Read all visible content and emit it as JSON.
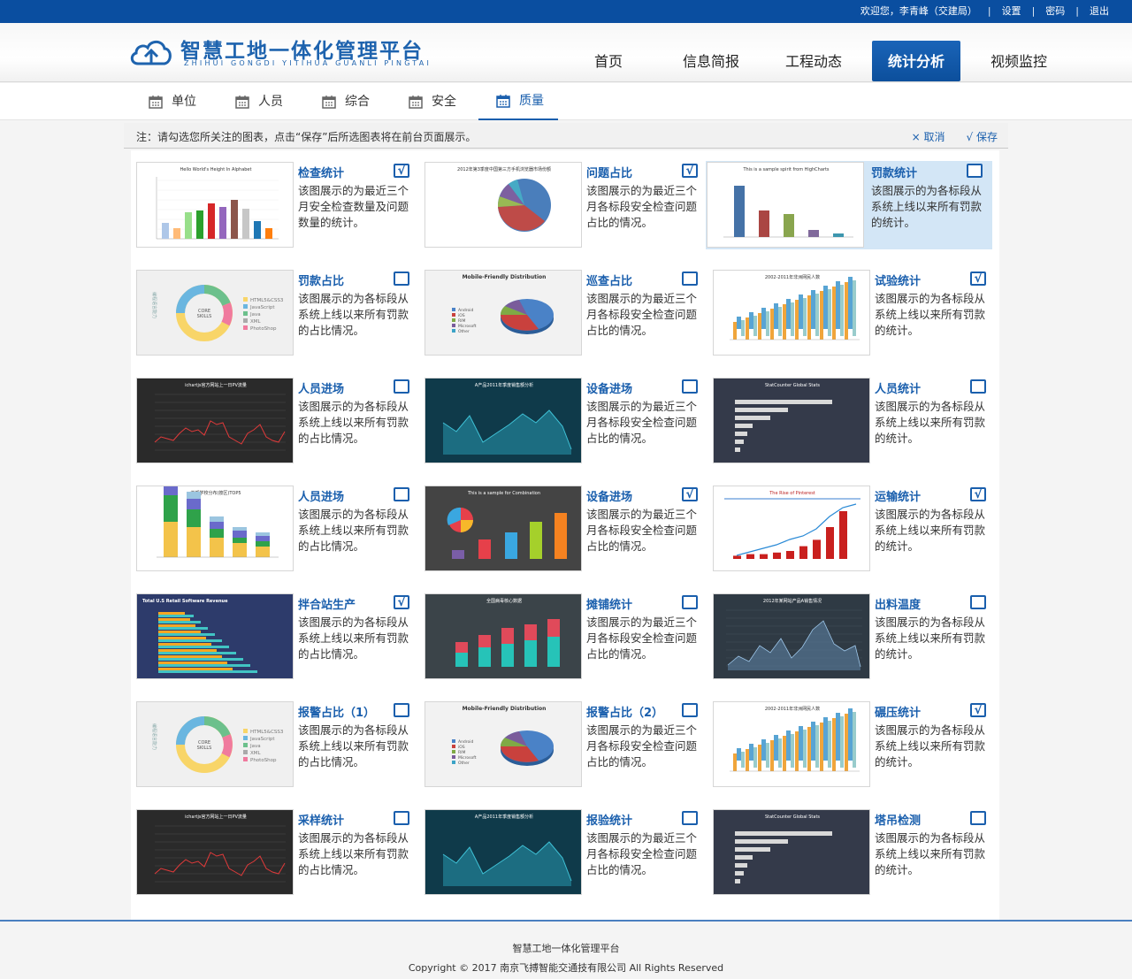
{
  "topbar": {
    "welcome": "欢迎您，李青峰（交建局）",
    "settings": "设置",
    "password": "密码",
    "logout": "退出"
  },
  "logo": {
    "title": "智慧工地一体化管理平台",
    "subtitle": "ZHIHUI GONGDI YITIHUA GUANLI PINGTAI"
  },
  "nav": [
    "首页",
    "信息简报",
    "工程动态",
    "统计分析",
    "视频监控"
  ],
  "nav_active": "统计分析",
  "subnav": [
    "单位",
    "人员",
    "综合",
    "安全",
    "质量"
  ],
  "subnav_active": "质量",
  "notebar": {
    "note": "注：请勾选您所关注的图表，点击“保存”后所选图表将在前台页面展示。",
    "cancel": "× 取消",
    "save": "√ 保存"
  },
  "cards": [
    {
      "title": "检查统计",
      "desc": "该图展示的为最近三个月安全检查数量及问题数量的统计。",
      "checked": true,
      "thumb": "bar-light",
      "thumb_title": "Hello World's Height In Alphabet"
    },
    {
      "title": "问题占比",
      "desc": "该图展示的为最近三个月各标段安全检查问题占比的情况。",
      "checked": true,
      "thumb": "pie-light",
      "thumb_title": "2012年第3季度中国第三方手机浏览器市场份额"
    },
    {
      "title": "罚款统计",
      "desc": "该图展示的为各标段从系统上线以来所有罚款的统计。",
      "checked": false,
      "selected": true,
      "thumb": "bar-simple",
      "thumb_title": "This is a sample spirit from HighCharts"
    },
    {
      "title": "罚款占比",
      "desc": "该图展示的为各标段从系统上线以来所有罚款的占比情况。",
      "checked": false,
      "thumb": "donut",
      "thumb_title": "CORE SKILLS"
    },
    {
      "title": "巡查占比",
      "desc": "该图展示的为最近三个月各标段安全检查问题占比的情况。",
      "checked": false,
      "thumb": "pie3d",
      "thumb_title": "Mobile-Friendly Distribution"
    },
    {
      "title": "试验统计",
      "desc": "该图展示的为各标段从系统上线以来所有罚款的统计。",
      "checked": true,
      "thumb": "bar3d",
      "thumb_title": "2002-2011年非洲网民人数"
    },
    {
      "title": "人员进场",
      "desc": "该图展示的为各标段从系统上线以来所有罚款的占比情况。",
      "checked": false,
      "thumb": "line-dark",
      "thumb_title": "ichartjs官方网站上一日PV流量"
    },
    {
      "title": "设备进场",
      "desc": "该图展示的为最近三个月各标段安全检查问题占比的情况。",
      "checked": false,
      "thumb": "area-teal",
      "thumb_title": "A产品2011年季度销售额分析"
    },
    {
      "title": "人员统计",
      "desc": "该图展示的为各标段从系统上线以来所有罚款的统计。",
      "checked": false,
      "thumb": "hbar-dark",
      "thumb_title": "StatCounter Global Stats"
    },
    {
      "title": "人员进场",
      "desc": "该图展示的为各标段从系统上线以来所有罚款的占比情况。",
      "checked": false,
      "thumb": "stack-light",
      "thumb_title": "首都学校分布(按区)TOP5"
    },
    {
      "title": "设备进场",
      "desc": "该图展示的为最近三个月各标段安全检查问题占比的情况。",
      "checked": true,
      "thumb": "combo-dark",
      "thumb_title": "This is a sample for Combination"
    },
    {
      "title": "运输统计",
      "desc": "该图展示的为各标段从系统上线以来所有罚款的统计。",
      "checked": true,
      "thumb": "barline-light",
      "thumb_title": "The Rise of Pinterest"
    },
    {
      "title": "拌合站生产",
      "desc": "该图展示的为各标段从系统上线以来所有罚款的占比情况。",
      "checked": true,
      "thumb": "hbar-navy",
      "thumb_title": "Total U.S Retail Software Revenue"
    },
    {
      "title": "摊铺统计",
      "desc": "该图展示的为最近三个月各标段安全检查问题占比的情况。",
      "checked": false,
      "thumb": "stack-dark",
      "thumb_title": "全国病毒核心数据"
    },
    {
      "title": "出料温度",
      "desc": "该图展示的为各标段从系统上线以来所有罚款的统计。",
      "checked": false,
      "thumb": "area-slate",
      "thumb_title": "2012年某网站产品A销售情况"
    },
    {
      "title": "报警占比（1）",
      "desc": "该图展示的为各标段从系统上线以来所有罚款的占比情况。",
      "checked": false,
      "thumb": "donut",
      "thumb_title": "CORE SKILLS"
    },
    {
      "title": "报警占比（2）",
      "desc": "该图展示的为最近三个月各标段安全检查问题占比的情况。",
      "checked": false,
      "thumb": "pie3d",
      "thumb_title": "Mobile-Friendly Distribution"
    },
    {
      "title": "碾压统计",
      "desc": "该图展示的为各标段从系统上线以来所有罚款的统计。",
      "checked": true,
      "thumb": "bar3d",
      "thumb_title": "2002-2011年非洲网民人数"
    },
    {
      "title": "采样统计",
      "desc": "该图展示的为各标段从系统上线以来所有罚款的占比情况。",
      "checked": false,
      "thumb": "line-dark",
      "thumb_title": "ichartjs官方网站上一日PV流量"
    },
    {
      "title": "报验统计",
      "desc": "该图展示的为最近三个月各标段安全检查问题占比的情况。",
      "checked": false,
      "thumb": "area-teal",
      "thumb_title": "A产品2011年季度销售额分析"
    },
    {
      "title": "塔吊检测",
      "desc": "该图展示的为各标段从系统上线以来所有罚款的统计。",
      "checked": false,
      "thumb": "hbar-dark",
      "thumb_title": "StatCounter Global Stats"
    }
  ],
  "footer": {
    "line1": "智慧工地一体化管理平台",
    "line2": "Copyright © 2017 南京飞搏智能交通技有限公司 All Rights Reserved"
  },
  "colors": {
    "primary": "#0a4ea0",
    "accent": "#1a5fad",
    "selected_bg": "#d3e6f6"
  }
}
